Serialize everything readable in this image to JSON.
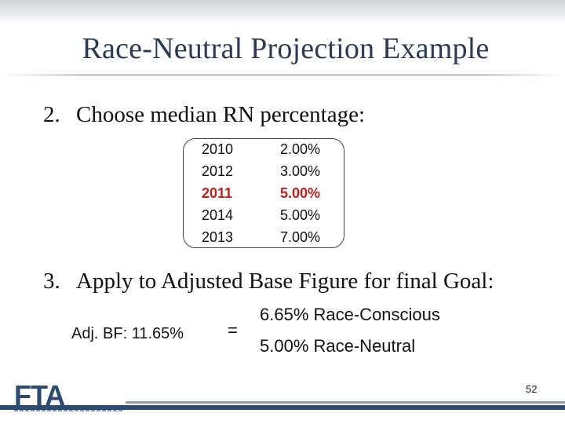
{
  "slide": {
    "title": "Race-Neutral Projection Example",
    "page_number": "52"
  },
  "step1": {
    "number": "2.",
    "text": "Choose median RN percentage:"
  },
  "table": {
    "rows": [
      {
        "year": "2010",
        "pct": "2.00%",
        "highlight": false
      },
      {
        "year": "2012",
        "pct": "3.00%",
        "highlight": false
      },
      {
        "year": "2011",
        "pct": "5.00%",
        "highlight": true
      },
      {
        "year": "2014",
        "pct": "5.00%",
        "highlight": false
      },
      {
        "year": "2013",
        "pct": "7.00%",
        "highlight": false
      }
    ],
    "highlight_color": "#c0201d"
  },
  "step2": {
    "number": "3.",
    "text": "Apply to Adjusted Base Figure for final Goal:"
  },
  "calculation": {
    "label": "Adj. BF: 11.65%",
    "equals": "=",
    "result_conscious": "6.65% Race-Conscious",
    "result_neutral": "5.00% Race-Neutral"
  },
  "logo": {
    "text": "FTA",
    "color": "#2d4a73"
  }
}
